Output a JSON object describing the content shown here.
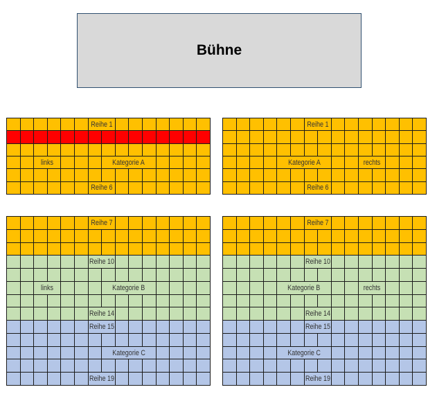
{
  "stage": {
    "label": "Bühne"
  },
  "colors": {
    "A": "#FFC000",
    "B": "#C6E0B4",
    "C": "#B4C6E7",
    "highlight": "#FF0000",
    "stage": "#D9D9D9"
  },
  "seats_per_row": 15,
  "blocks": [
    {
      "id": "top-left",
      "side": "left",
      "rows": [
        {
          "tier": "A",
          "row_label": "Reihe 1"
        },
        {
          "tier": "A",
          "highlight": true
        },
        {
          "tier": "A"
        },
        {
          "tier": "A",
          "side_label": "links",
          "category_label": "Kategorie A"
        },
        {
          "tier": "A"
        },
        {
          "tier": "A",
          "row_label": "Reihe 6"
        }
      ]
    },
    {
      "id": "top-right",
      "side": "right",
      "rows": [
        {
          "tier": "A",
          "row_label": "Reihe 1"
        },
        {
          "tier": "A"
        },
        {
          "tier": "A"
        },
        {
          "tier": "A",
          "side_label": "rechts",
          "category_label": "Kategorie A"
        },
        {
          "tier": "A"
        },
        {
          "tier": "A",
          "row_label": "Reihe 6"
        }
      ]
    },
    {
      "id": "bottom-left",
      "side": "left",
      "rows": [
        {
          "tier": "A",
          "row_label": "Reihe 7"
        },
        {
          "tier": "A"
        },
        {
          "tier": "A"
        },
        {
          "tier": "B",
          "row_label": "Reihe 10"
        },
        {
          "tier": "B"
        },
        {
          "tier": "B",
          "side_label": "links",
          "category_label": "Kategorie B"
        },
        {
          "tier": "B"
        },
        {
          "tier": "B",
          "row_label": "Reihe 14"
        },
        {
          "tier": "C",
          "row_label": "Reihe 15"
        },
        {
          "tier": "C"
        },
        {
          "tier": "C",
          "category_label": "Kategorie C"
        },
        {
          "tier": "C"
        },
        {
          "tier": "C",
          "row_label": "Reihe 19"
        }
      ]
    },
    {
      "id": "bottom-right",
      "side": "right",
      "rows": [
        {
          "tier": "A",
          "row_label": "Reihe 7"
        },
        {
          "tier": "A"
        },
        {
          "tier": "A"
        },
        {
          "tier": "B",
          "row_label": "Reihe 10"
        },
        {
          "tier": "B"
        },
        {
          "tier": "B",
          "side_label": "rechts",
          "category_label": "Kategorie B"
        },
        {
          "tier": "B"
        },
        {
          "tier": "B",
          "row_label": "Reihe 14"
        },
        {
          "tier": "C",
          "row_label": "Reihe 15"
        },
        {
          "tier": "C"
        },
        {
          "tier": "C",
          "category_label": "Kategorie C"
        },
        {
          "tier": "C"
        },
        {
          "tier": "C",
          "row_label": "Reihe 19"
        }
      ]
    }
  ]
}
